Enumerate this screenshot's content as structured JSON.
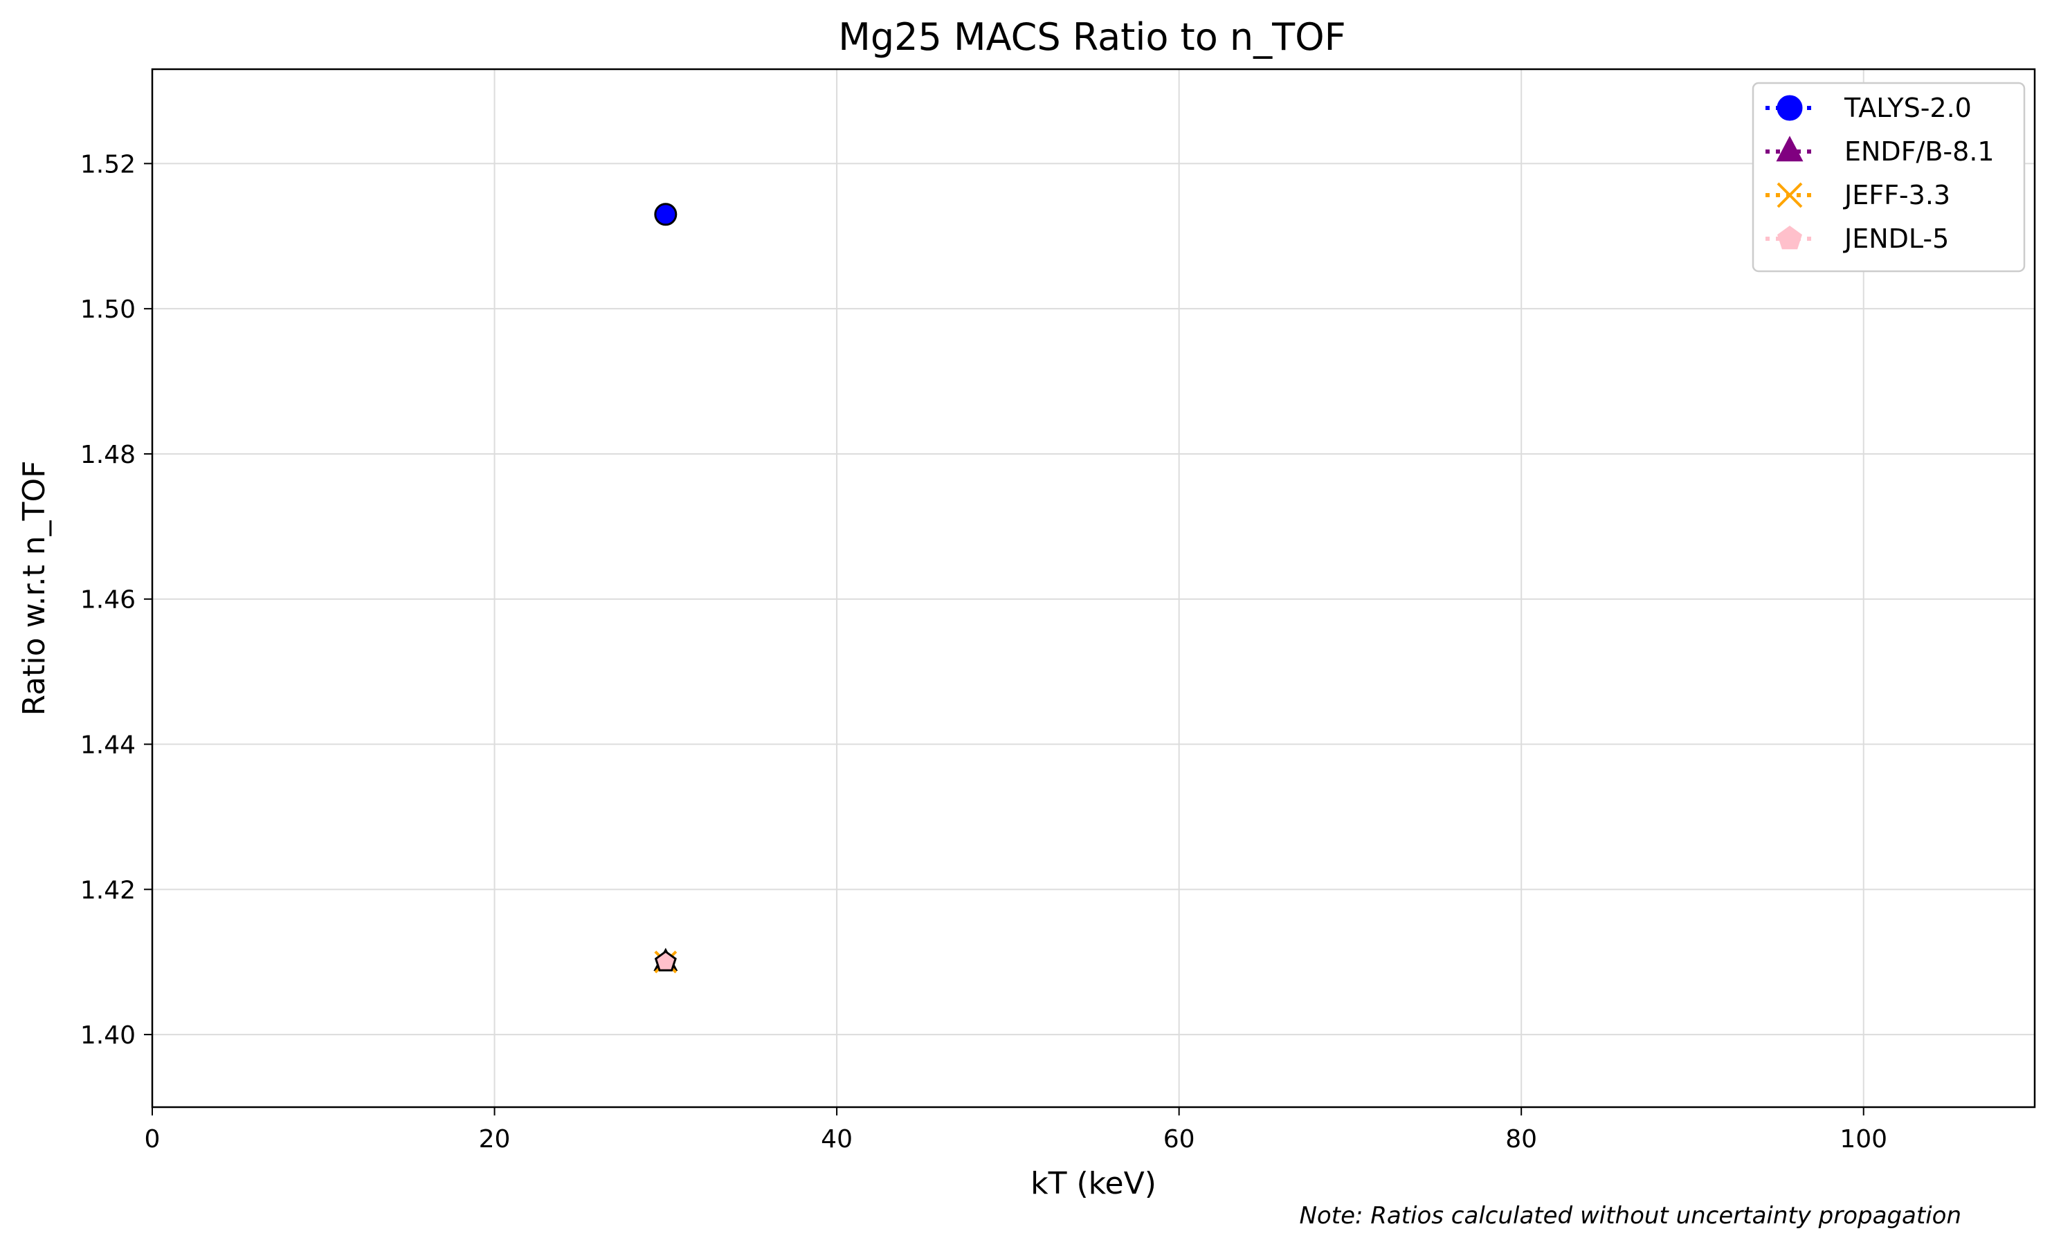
{
  "chart_data": {
    "type": "scatter",
    "title": "Mg25 MACS Ratio to n_TOF",
    "xlabel": "kT (keV)",
    "ylabel": "Ratio w.r.t n_TOF",
    "xlim": [
      0,
      110
    ],
    "ylim": [
      1.39,
      1.533
    ],
    "xticks": [
      0,
      20,
      40,
      60,
      80,
      100
    ],
    "yticks": [
      1.4,
      1.42,
      1.44,
      1.46,
      1.48,
      1.5,
      1.52
    ],
    "grid": true,
    "legend_position": "top-right",
    "series": [
      {
        "name": "TALYS-2.0",
        "marker": "circle",
        "color": "#0000ff",
        "x": [
          30
        ],
        "y": [
          1.513
        ]
      },
      {
        "name": "ENDF/B-8.1",
        "marker": "triangle",
        "color": "#800080",
        "x": [
          30
        ],
        "y": [
          1.41
        ]
      },
      {
        "name": "JEFF-3.3",
        "marker": "x",
        "color": "#ffa500",
        "x": [
          30
        ],
        "y": [
          1.41
        ]
      },
      {
        "name": "JENDL-5",
        "marker": "pentagon",
        "color": "#ffc0cb",
        "x": [
          30
        ],
        "y": [
          1.41
        ]
      }
    ],
    "note": "Note: Ratios calculated without uncertainty propagation"
  }
}
